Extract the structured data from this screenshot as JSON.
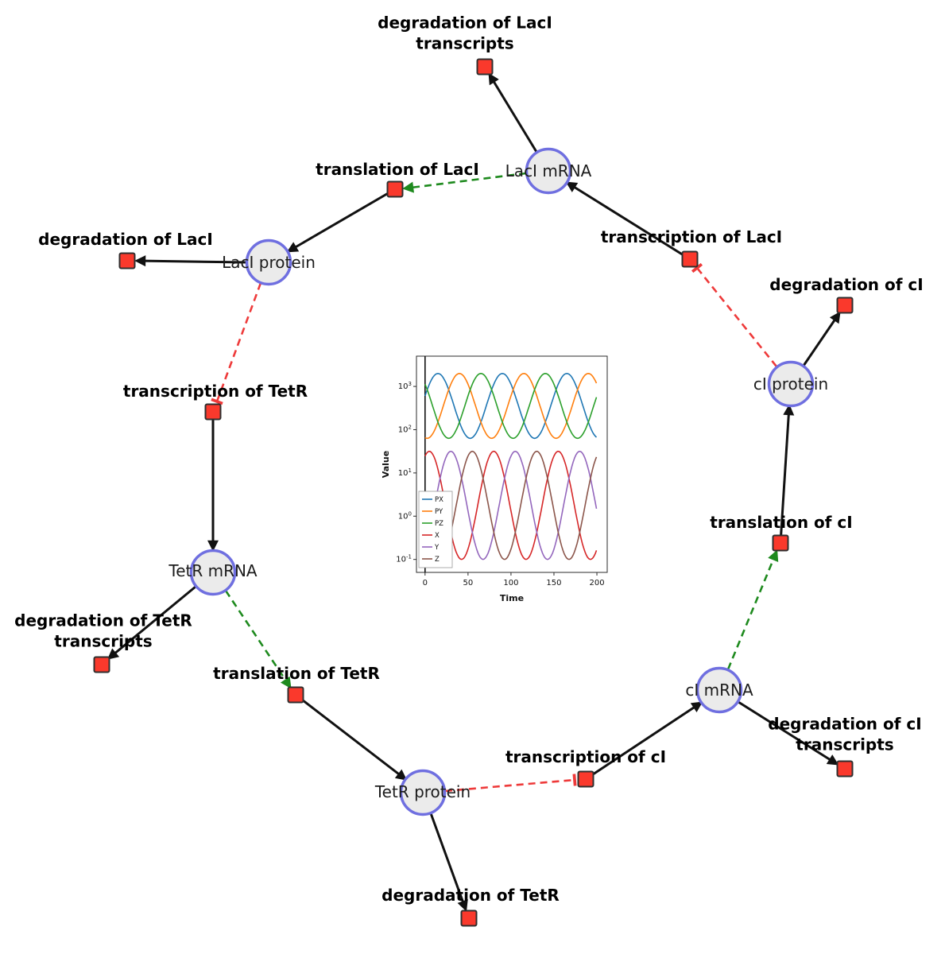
{
  "diagram": {
    "species": [
      {
        "id": "laci-mrna",
        "label": "LacI mRNA"
      },
      {
        "id": "laci-protein",
        "label": "LacI protein"
      },
      {
        "id": "tetr-mrna",
        "label": "TetR mRNA"
      },
      {
        "id": "tetr-protein",
        "label": "TetR protein"
      },
      {
        "id": "ci-mrna",
        "label": "cI mRNA"
      },
      {
        "id": "ci-protein",
        "label": "cI protein"
      }
    ],
    "reactions": [
      {
        "id": "degradation-of-laci-transcripts",
        "label": "degradation of LacI transcripts"
      },
      {
        "id": "translation-of-laci",
        "label": "translation of LacI"
      },
      {
        "id": "transcription-of-laci",
        "label": "transcription of LacI"
      },
      {
        "id": "degradation-of-laci",
        "label": "degradation of LacI"
      },
      {
        "id": "degradation-of-ci",
        "label": "degradation of cI"
      },
      {
        "id": "transcription-of-tetr",
        "label": "transcription of TetR"
      },
      {
        "id": "translation-of-ci",
        "label": "translation of cI"
      },
      {
        "id": "degradation-of-tetr-transcripts",
        "label": "degradation of TetR transcripts"
      },
      {
        "id": "translation-of-tetr",
        "label": "translation of TetR"
      },
      {
        "id": "degradation-of-ci-transcripts",
        "label": "degradation of cI transcripts"
      },
      {
        "id": "transcription-of-ci",
        "label": "transcription of cI"
      },
      {
        "id": "degradation-of-tetr",
        "label": "degradation of TetR"
      }
    ],
    "interactions": [
      {
        "from": "laci-mrna",
        "to": "degradation-of-laci-transcripts",
        "type": "consumption"
      },
      {
        "from": "transcription-of-laci",
        "to": "laci-mrna",
        "type": "production"
      },
      {
        "from": "translation-of-laci",
        "to": "laci-protein",
        "type": "production"
      },
      {
        "from": "laci-mrna",
        "to": "translation-of-laci",
        "type": "catalysis"
      },
      {
        "from": "laci-protein",
        "to": "degradation-of-laci",
        "type": "consumption"
      },
      {
        "from": "laci-protein",
        "to": "transcription-of-tetr",
        "type": "inhibition"
      },
      {
        "from": "transcription-of-tetr",
        "to": "tetr-mrna",
        "type": "production"
      },
      {
        "from": "tetr-mrna",
        "to": "degradation-of-tetr-transcripts",
        "type": "consumption"
      },
      {
        "from": "tetr-mrna",
        "to": "translation-of-tetr",
        "type": "catalysis"
      },
      {
        "from": "translation-of-tetr",
        "to": "tetr-protein",
        "type": "production"
      },
      {
        "from": "tetr-protein",
        "to": "degradation-of-tetr",
        "type": "consumption"
      },
      {
        "from": "tetr-protein",
        "to": "transcription-of-ci",
        "type": "inhibition"
      },
      {
        "from": "transcription-of-ci",
        "to": "ci-mrna",
        "type": "production"
      },
      {
        "from": "ci-mrna",
        "to": "degradation-of-ci-transcripts",
        "type": "consumption"
      },
      {
        "from": "ci-mrna",
        "to": "translation-of-ci",
        "type": "catalysis"
      },
      {
        "from": "translation-of-ci",
        "to": "ci-protein",
        "type": "production"
      },
      {
        "from": "ci-protein",
        "to": "degradation-of-ci",
        "type": "consumption"
      },
      {
        "from": "ci-protein",
        "to": "transcription-of-laci",
        "type": "inhibition"
      }
    ],
    "colors": {
      "species_fill": "#ebebeb",
      "species_border": "#6f6fe0",
      "reaction_fill": "#fa392c",
      "reaction_border": "#2f2f2f",
      "production_edge": "#111111",
      "catalysis_edge": "#1e8a1e",
      "inhibition_edge": "#ee3a3a"
    }
  },
  "chart_data": {
    "type": "line",
    "title": "",
    "xlabel": "Time",
    "ylabel": "Value",
    "grid": false,
    "yscale": "log",
    "legend_position": "lower-left",
    "x_ticks": [
      0,
      50,
      100,
      150,
      200
    ],
    "xlim": [
      -10,
      212
    ],
    "y_ticks_log10": [
      -1,
      0,
      1,
      2,
      3
    ],
    "ylim_log10": [
      -1.3,
      3.7
    ],
    "t_sampled": [
      0,
      12.5,
      25,
      37.5,
      50,
      62.5,
      75,
      87.5,
      100,
      112.5,
      125,
      137.5,
      150,
      162.5,
      175,
      187.5,
      200
    ],
    "series": [
      {
        "name": "PX",
        "color": "#1f77b4",
        "osc": {
          "log10_mid": 2.55,
          "log10_amp": 0.75,
          "period": 75,
          "peak_t": 15
        },
        "values_sampled": [
          605,
          1923,
          1127,
          208,
          66,
          112,
          605,
          1923,
          1127,
          208,
          66,
          112,
          605,
          1923,
          1127,
          208,
          66
        ]
      },
      {
        "name": "PY",
        "color": "#ff7f0e",
        "osc": {
          "log10_mid": 2.55,
          "log10_amp": 0.75,
          "period": 75,
          "peak_t": 40
        },
        "values_sampled": [
          66,
          112,
          605,
          1923,
          1127,
          208,
          66,
          112,
          605,
          1923,
          1127,
          208,
          66,
          112,
          605,
          1923,
          1127
        ]
      },
      {
        "name": "PZ",
        "color": "#2ca02c",
        "osc": {
          "log10_mid": 2.55,
          "log10_amp": 0.75,
          "period": 75,
          "peak_t": 65
        },
        "values_sampled": [
          1127,
          208,
          66,
          112,
          605,
          1923,
          1127,
          208,
          66,
          112,
          605,
          1923,
          1127,
          208,
          66,
          112,
          605
        ]
      },
      {
        "name": "X",
        "color": "#d62728",
        "osc": {
          "log10_mid": 0.25,
          "log10_amp": 1.25,
          "period": 75,
          "peak_t": 5
        },
        "values_sampled": [
          24.7,
          18.2,
          1.3,
          0.13,
          0.17,
          2.4,
          24.7,
          18.2,
          1.3,
          0.13,
          0.17,
          2.4,
          24.7,
          18.2,
          1.3,
          0.13,
          0.17
        ]
      },
      {
        "name": "Y",
        "color": "#9467bd",
        "osc": {
          "log10_mid": 0.25,
          "log10_amp": 1.25,
          "period": 75,
          "peak_t": 30
        },
        "values_sampled": [
          0.17,
          2.4,
          24.7,
          18.2,
          1.3,
          0.13,
          0.17,
          2.4,
          24.7,
          18.2,
          1.3,
          0.13,
          0.17,
          2.4,
          24.7,
          18.2,
          1.3
        ]
      },
      {
        "name": "Z",
        "color": "#8c564b",
        "osc": {
          "log10_mid": 0.25,
          "log10_amp": 1.25,
          "period": 75,
          "peak_t": 55
        },
        "values_sampled": [
          1.3,
          0.13,
          0.17,
          2.4,
          24.7,
          18.2,
          1.3,
          0.13,
          0.17,
          2.4,
          24.7,
          18.2,
          1.3,
          0.13,
          0.17,
          2.4,
          24.7
        ]
      }
    ]
  }
}
